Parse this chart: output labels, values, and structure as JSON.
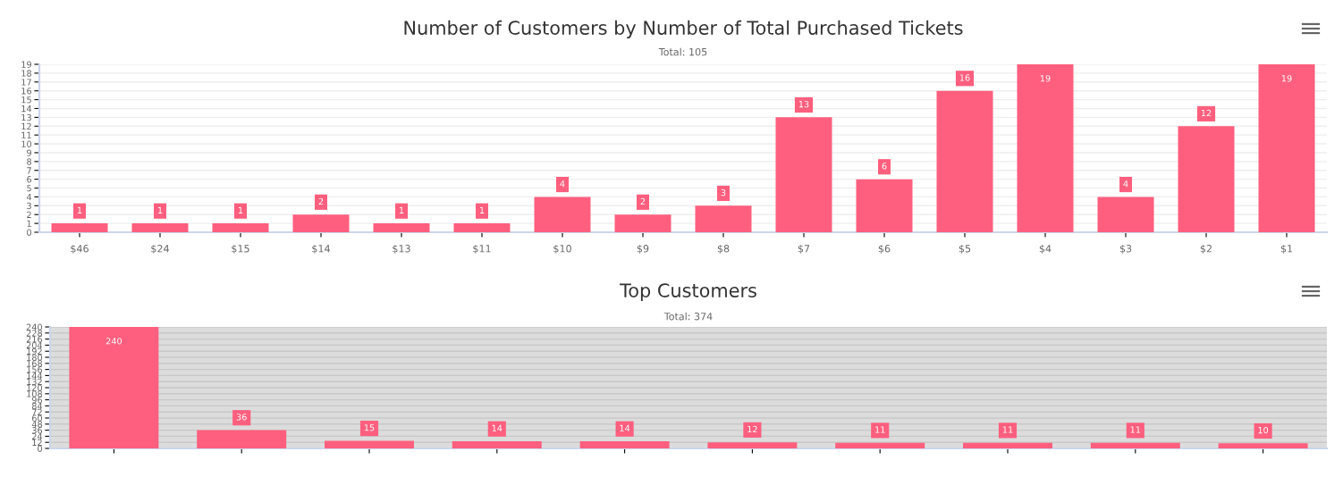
{
  "chart_data": [
    {
      "type": "bar",
      "title": "Number of Customers by Number of Total Purchased Tickets",
      "subtitle": "Total: 105",
      "categories": [
        "$46",
        "$24",
        "$15",
        "$14",
        "$13",
        "$11",
        "$10",
        "$9",
        "$8",
        "$7",
        "$6",
        "$5",
        "$4",
        "$3",
        "$2",
        "$1"
      ],
      "values": [
        1,
        1,
        1,
        2,
        1,
        1,
        4,
        2,
        3,
        13,
        6,
        16,
        19,
        4,
        12,
        19
      ],
      "color": "#ff5f7e",
      "ylim": [
        0,
        19
      ],
      "yticks": [
        0,
        1,
        2,
        3,
        4,
        5,
        6,
        7,
        8,
        9,
        10,
        11,
        12,
        13,
        14,
        15,
        16,
        17,
        18,
        19
      ],
      "grid": "y",
      "data_labels": true
    },
    {
      "type": "bar",
      "title": "Top Customers",
      "subtitle": "Total: 374",
      "categories": [
        null,
        null,
        null,
        null,
        null,
        null,
        null,
        null,
        null,
        null
      ],
      "values": [
        240,
        36,
        15,
        14,
        14,
        12,
        11,
        11,
        11,
        10
      ],
      "color": "#ff5f7e",
      "ylim": [
        0,
        240
      ],
      "yticks": [
        0,
        12,
        24,
        36,
        48,
        60,
        72,
        84,
        96,
        108,
        120,
        132,
        144,
        156,
        168,
        180,
        192,
        204,
        216,
        228,
        240
      ],
      "grid": "y",
      "data_labels": true
    }
  ]
}
